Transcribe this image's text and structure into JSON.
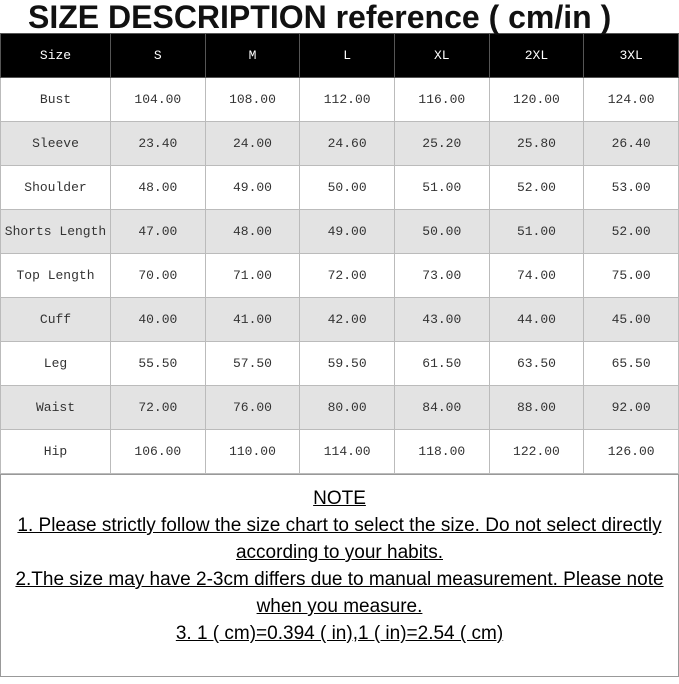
{
  "title": "SIZE DESCRIPTION reference ( cm/in )",
  "table": {
    "header": [
      "Size",
      "S",
      "M",
      "L",
      "XL",
      "2XL",
      "3XL"
    ],
    "rows": [
      [
        "Bust",
        "104.00",
        "108.00",
        "112.00",
        "116.00",
        "120.00",
        "124.00"
      ],
      [
        "Sleeve",
        "23.40",
        "24.00",
        "24.60",
        "25.20",
        "25.80",
        "26.40"
      ],
      [
        "Shoulder",
        "48.00",
        "49.00",
        "50.00",
        "51.00",
        "52.00",
        "53.00"
      ],
      [
        "Shorts Length",
        "47.00",
        "48.00",
        "49.00",
        "50.00",
        "51.00",
        "52.00"
      ],
      [
        "Top Length",
        "70.00",
        "71.00",
        "72.00",
        "73.00",
        "74.00",
        "75.00"
      ],
      [
        "Cuff",
        "40.00",
        "41.00",
        "42.00",
        "43.00",
        "44.00",
        "45.00"
      ],
      [
        "Leg",
        "55.50",
        "57.50",
        "59.50",
        "61.50",
        "63.50",
        "65.50"
      ],
      [
        "Waist",
        "72.00",
        "76.00",
        "80.00",
        "84.00",
        "88.00",
        "92.00"
      ],
      [
        "Hip",
        "106.00",
        "110.00",
        "114.00",
        "118.00",
        "122.00",
        "126.00"
      ]
    ]
  },
  "note": {
    "title": "NOTE",
    "lines": [
      "1. Please strictly follow the size chart to select the size. Do not select directly according to your habits.",
      "2.The size may have 2-3cm differs due to manual measurement. Please note when you measure.",
      "3.  1 ( cm)=0.394 ( in),1  ( in)=2.54 ( cm)"
    ]
  }
}
